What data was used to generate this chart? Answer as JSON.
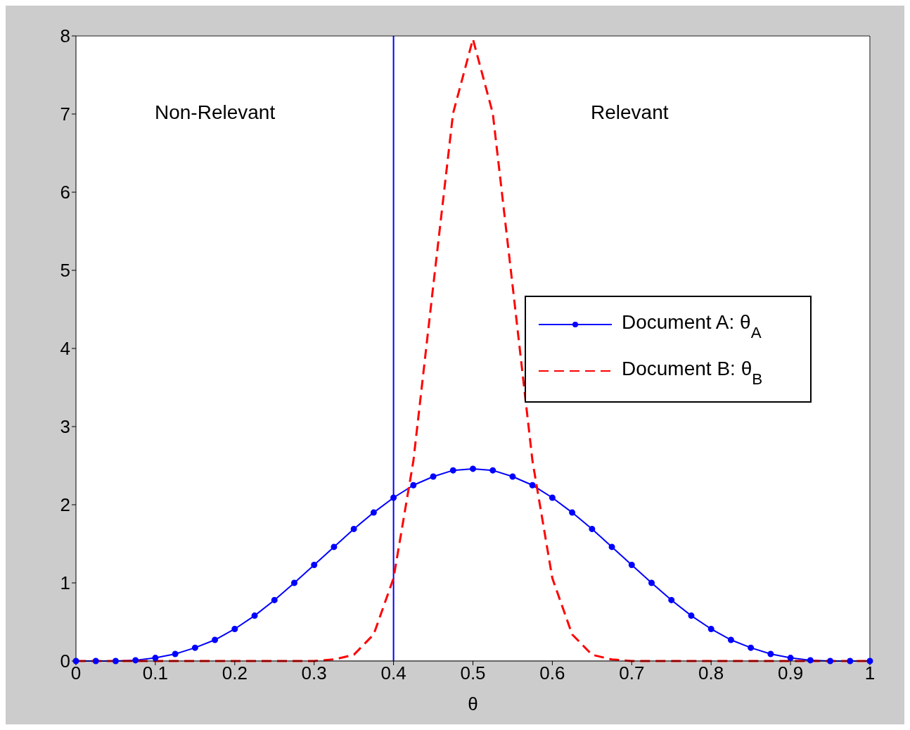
{
  "chart_data": {
    "type": "line",
    "xlabel": "θ",
    "x": [
      0,
      0.025,
      0.05,
      0.075,
      0.1,
      0.125,
      0.15,
      0.175,
      0.2,
      0.225,
      0.25,
      0.275,
      0.3,
      0.325,
      0.35,
      0.375,
      0.4,
      0.425,
      0.45,
      0.475,
      0.5,
      0.525,
      0.55,
      0.575,
      0.6,
      0.625,
      0.65,
      0.675,
      0.7,
      0.725,
      0.75,
      0.775,
      0.8,
      0.825,
      0.85,
      0.875,
      0.9,
      0.925,
      0.95,
      0.975,
      1
    ],
    "series": [
      {
        "name": "Document A: θ$_{A}$",
        "color": "#0000ff",
        "marker": "circle",
        "line_style": "solid",
        "values": [
          0,
          0,
          0,
          0.01,
          0.04,
          0.09,
          0.17,
          0.27,
          0.41,
          0.58,
          0.78,
          1.0,
          1.23,
          1.46,
          1.69,
          1.9,
          2.09,
          2.25,
          2.36,
          2.44,
          2.46,
          2.44,
          2.36,
          2.25,
          2.09,
          1.9,
          1.69,
          1.46,
          1.23,
          1.0,
          0.78,
          0.58,
          0.41,
          0.27,
          0.17,
          0.09,
          0.04,
          0.01,
          0,
          0,
          0
        ]
      },
      {
        "name": "Document B: θ$_{B}$",
        "color": "#ff0000",
        "marker": "none",
        "line_style": "dashed",
        "values": [
          0,
          0,
          0,
          0,
          0,
          0,
          0,
          0,
          0,
          0,
          0,
          0,
          0,
          0.02,
          0.08,
          0.34,
          1.06,
          2.56,
          4.8,
          7.01,
          7.96,
          7.01,
          4.8,
          2.56,
          1.06,
          0.34,
          0.08,
          0.02,
          0,
          0,
          0,
          0,
          0,
          0,
          0,
          0,
          0,
          0,
          0,
          0,
          0
        ]
      }
    ],
    "xlim": [
      0,
      1
    ],
    "xticks": [
      0,
      0.1,
      0.2,
      0.3,
      0.4,
      0.5,
      0.6,
      0.7,
      0.8,
      0.9,
      1
    ],
    "ylim": [
      0,
      8
    ],
    "yticks": [
      0,
      1,
      2,
      3,
      4,
      5,
      6,
      7,
      8
    ],
    "ref_lines": [
      {
        "axis": "x",
        "value": 0.4,
        "color": "#0000ff",
        "line_style": "solid"
      }
    ],
    "annotations": [
      "Non-Relevant",
      "Relevant"
    ],
    "grid": false,
    "legend": "right"
  }
}
